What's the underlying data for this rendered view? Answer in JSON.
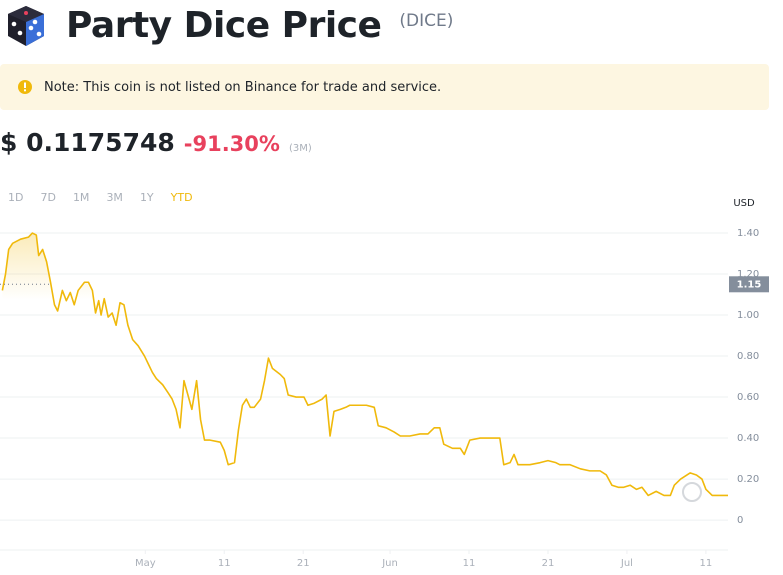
{
  "header": {
    "title": "Party Dice Price",
    "symbol": "(DICE)"
  },
  "note": "Note: This coin is not listed on Binance for trade and service.",
  "price": {
    "value": "$ 0.1175748",
    "change": "-91.30%",
    "period": "(3M)"
  },
  "tabs": {
    "items": [
      "1D",
      "7D",
      "1M",
      "3M",
      "1Y",
      "YTD"
    ],
    "active": 5
  },
  "chart_data": {
    "type": "line",
    "y_unit": "USD",
    "x": [
      -18.1,
      -17.7,
      -17.3,
      -16.8,
      -15.8,
      -14.8,
      -14.3,
      -13.8,
      -13.5,
      -13.0,
      -12.5,
      -12.0,
      -11.5,
      -11.1,
      -10.5,
      -10.0,
      -9.5,
      -9.0,
      -8.5,
      -7.7,
      -7.2,
      -6.7,
      -6.3,
      -5.9,
      -5.6,
      -5.2,
      -4.7,
      -4.2,
      -3.7,
      -3.2,
      -2.7,
      -2.2,
      -1.6,
      -0.9,
      -0.1,
      0.4,
      0.9,
      1.4,
      2.2,
      2.9,
      3.4,
      3.9,
      4.4,
      4.9,
      5.4,
      5.9,
      6.5,
      7.0,
      7.5,
      8.2,
      9.5,
      10.0,
      10.5,
      11.3,
      11.8,
      12.3,
      12.8,
      13.3,
      13.8,
      14.6,
      15.1,
      15.6,
      16.1,
      17.1,
      17.6,
      18.1,
      19.1,
      20.1,
      20.6,
      21.4,
      22.4,
      22.9,
      23.4,
      23.9,
      24.7,
      25.4,
      25.9,
      27.0,
      28.0,
      29.0,
      29.5,
      30.5,
      31.5,
      32.3,
      33.5,
      34.8,
      35.8,
      36.6,
      37.3,
      37.8,
      38.9,
      39.9,
      40.4,
      41.1,
      42.4,
      43.7,
      44.9,
      45.4,
      46.2,
      46.7,
      47.2,
      48.7,
      50.0,
      51.0,
      52.0,
      52.5,
      53.8,
      55.1,
      56.3,
      57.6,
      58.4,
      59.1,
      59.9,
      60.6,
      61.4,
      62.2,
      62.9,
      63.7,
      64.7,
      65.7,
      66.5,
      67.0,
      67.8,
      69.0,
      69.8,
      70.5,
      71.0,
      71.8,
      73.8
    ],
    "series": [
      {
        "color": "#f0b90b",
        "values": [
          1.12,
          1.2,
          1.32,
          1.35,
          1.37,
          1.38,
          1.4,
          1.39,
          1.29,
          1.32,
          1.26,
          1.16,
          1.05,
          1.02,
          1.12,
          1.07,
          1.11,
          1.05,
          1.12,
          1.16,
          1.16,
          1.12,
          1.01,
          1.07,
          1.0,
          1.08,
          0.99,
          1.01,
          0.95,
          1.06,
          1.05,
          0.95,
          0.88,
          0.85,
          0.8,
          0.76,
          0.72,
          0.69,
          0.66,
          0.62,
          0.59,
          0.54,
          0.45,
          0.68,
          0.61,
          0.54,
          0.68,
          0.49,
          0.39,
          0.39,
          0.38,
          0.34,
          0.27,
          0.28,
          0.44,
          0.56,
          0.59,
          0.55,
          0.55,
          0.59,
          0.68,
          0.79,
          0.74,
          0.71,
          0.69,
          0.61,
          0.6,
          0.6,
          0.56,
          0.57,
          0.59,
          0.61,
          0.41,
          0.53,
          0.54,
          0.55,
          0.56,
          0.56,
          0.56,
          0.55,
          0.46,
          0.45,
          0.43,
          0.41,
          0.41,
          0.42,
          0.42,
          0.45,
          0.45,
          0.37,
          0.35,
          0.35,
          0.32,
          0.39,
          0.4,
          0.4,
          0.4,
          0.27,
          0.28,
          0.32,
          0.27,
          0.27,
          0.28,
          0.29,
          0.28,
          0.27,
          0.27,
          0.25,
          0.24,
          0.24,
          0.22,
          0.17,
          0.16,
          0.16,
          0.17,
          0.15,
          0.16,
          0.12,
          0.14,
          0.12,
          0.12,
          0.17,
          0.2,
          0.23,
          0.22,
          0.2,
          0.15,
          0.12,
          0.12
        ]
      }
    ],
    "xlim": [
      -18.4,
      73.8
    ],
    "xticks": [
      {
        "value": 0,
        "label": "May"
      },
      {
        "value": 10,
        "label": "11"
      },
      {
        "value": 20,
        "label": "21"
      },
      {
        "value": 31,
        "label": "Jun"
      },
      {
        "value": 41,
        "label": "11"
      },
      {
        "value": 51,
        "label": "21"
      },
      {
        "value": 61,
        "label": "Jul"
      },
      {
        "value": 71,
        "label": "11"
      }
    ],
    "ylim": [
      -0.146,
      1.488
    ],
    "yticks": [
      0,
      {
        "value": 0.2,
        "label": "0.20"
      },
      {
        "value": 0.4,
        "label": "0.40"
      },
      {
        "value": 0.6,
        "label": "0.60"
      },
      {
        "value": 0.8,
        "label": "0.80"
      },
      {
        "value": 1.0,
        "label": "1.00"
      },
      {
        "value": 1.2,
        "label": "1.20"
      },
      {
        "value": 1.4,
        "label": "1.40"
      }
    ],
    "grid": true,
    "price_tag": 1.15
  }
}
